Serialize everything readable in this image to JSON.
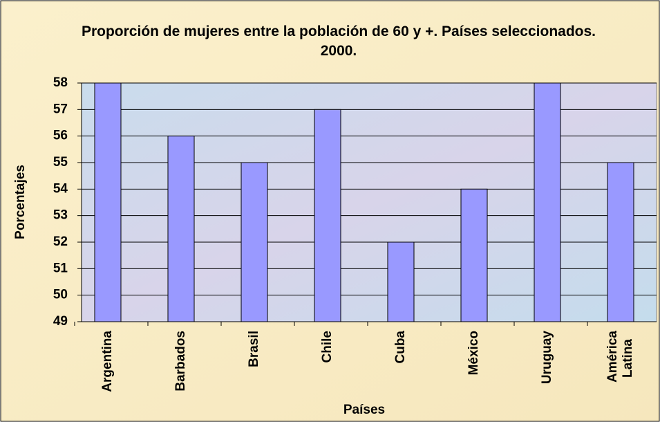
{
  "chart_data": {
    "type": "bar",
    "title": "Proporción de mujeres entre la población de 60 y +. Países seleccionados. 2000.",
    "xlabel": "Países",
    "ylabel": "Porcentajes",
    "categories": [
      "Argentina",
      "Barbados",
      "Brasil",
      "Chile",
      "Cuba",
      "México",
      "Uruguay",
      "América Latina"
    ],
    "values": [
      58,
      56,
      55,
      57,
      52,
      54,
      58,
      55
    ],
    "color": "#9999ff",
    "ylim": [
      49,
      58
    ],
    "yticks": [
      49,
      50,
      51,
      52,
      53,
      54,
      55,
      56,
      57,
      58
    ],
    "grid": true
  }
}
